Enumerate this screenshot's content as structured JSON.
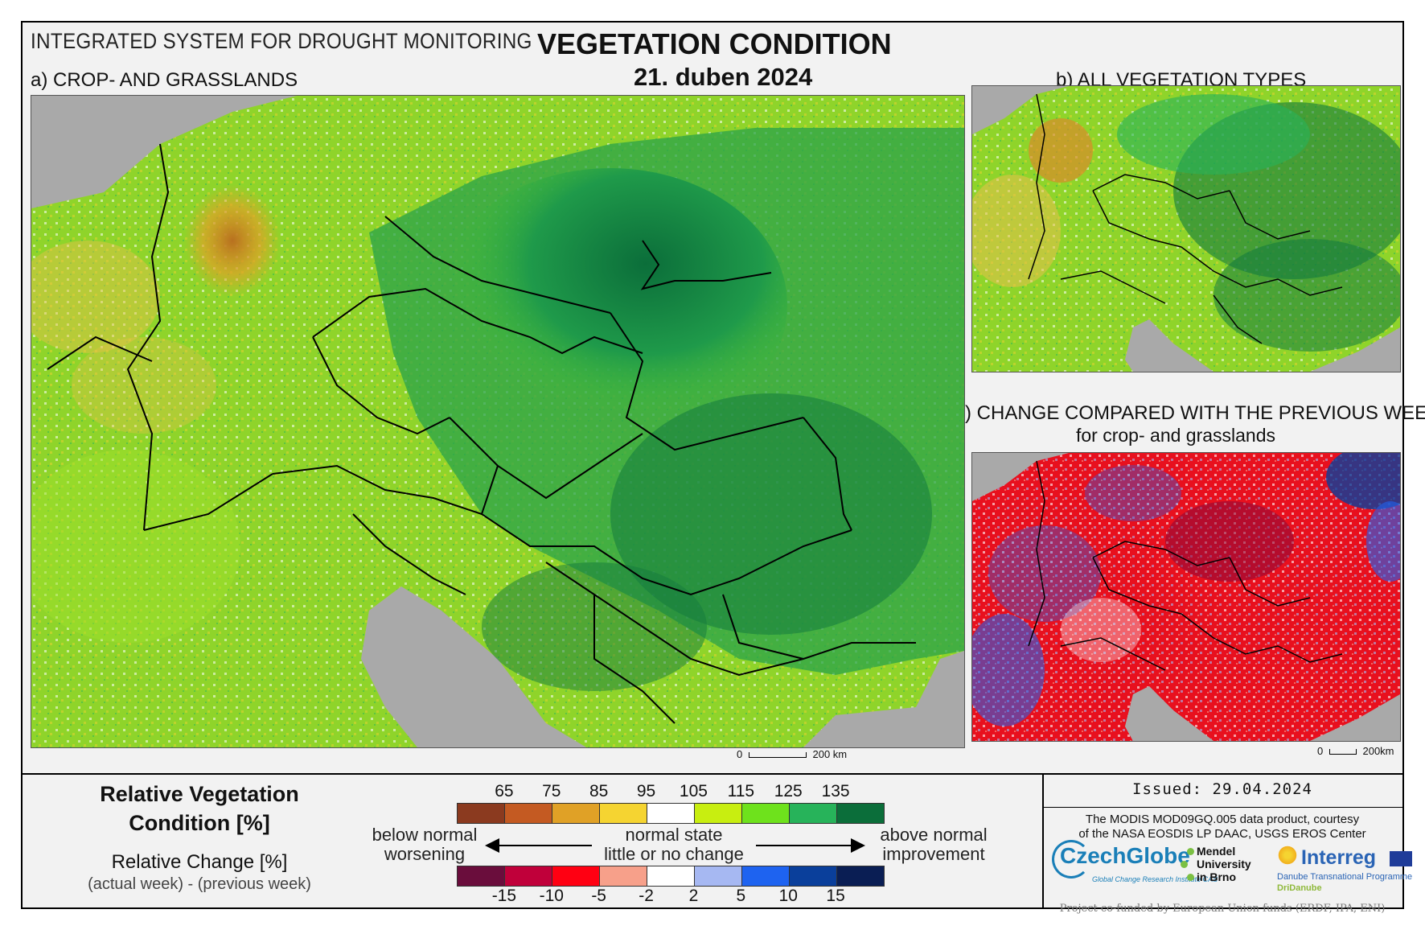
{
  "header": {
    "system_title": "INTEGRATED SYSTEM FOR DROUGHT MONITORING",
    "main_title": "VEGETATION CONDITION",
    "date": "21. duben 2024"
  },
  "panels": {
    "a_label": "a) CROP- AND GRASSLANDS",
    "b_label": "b) ALL VEGETATION TYPES",
    "c_label": "c) CHANGE COMPARED WITH THE PREVIOUS WEEK",
    "c_sublabel": "for crop- and grasslands"
  },
  "scalebars": {
    "a": {
      "zero": "0",
      "end": "200 km"
    },
    "c": {
      "zero": "0",
      "end": "200km"
    }
  },
  "legend": {
    "rvc_title_1": "Relative Vegetation",
    "rvc_title_2": "Condition [%]",
    "rc_title": "Relative Change [%]",
    "rc_subtitle": "(actual week) - (previous week)",
    "rvc_ticks": [
      "65",
      "75",
      "85",
      "95",
      "105",
      "115",
      "125",
      "135"
    ],
    "rvc_colors": [
      "#8b3a1f",
      "#c45a22",
      "#e0a126",
      "#f5d431",
      "#ffffff",
      "#c8ee10",
      "#6ee21c",
      "#27b35a",
      "#0b6e3a"
    ],
    "rc_ticks": [
      "-15",
      "-10",
      "-5",
      "-2",
      "2",
      "5",
      "10",
      "15"
    ],
    "rc_colors": [
      "#6a0d3c",
      "#c0003a",
      "#ff0012",
      "#f7a08a",
      "#ffffff",
      "#a6b8f2",
      "#1e63f0",
      "#0a3f9b",
      "#0a1e54"
    ],
    "left_text_1": "below normal",
    "left_text_2": "worsening",
    "mid_text_1": "normal state",
    "mid_text_2": "little or no change",
    "right_text_1": "above normal",
    "right_text_2": "improvement"
  },
  "info": {
    "issued": "Issued: 29.04.2024",
    "credit_1": "The MODIS MOD09GQ.005 data product, courtesy",
    "credit_2": "of the NASA EOSDIS LP DAAC, USGS EROS Center",
    "logo_czechglobe": "CzechGlobe",
    "logo_czechglobe_sub": "Global Change Research Institute CAS",
    "logo_mendel": [
      "Mendel",
      "University",
      "in Brno"
    ],
    "logo_interreg": "Interreg",
    "logo_interreg_sub": "Danube Transnational Programme",
    "logo_dridanube": "DriDanube",
    "cofund": "Project co-funded by European Union funds (ERDF, IPA, ENI)"
  }
}
